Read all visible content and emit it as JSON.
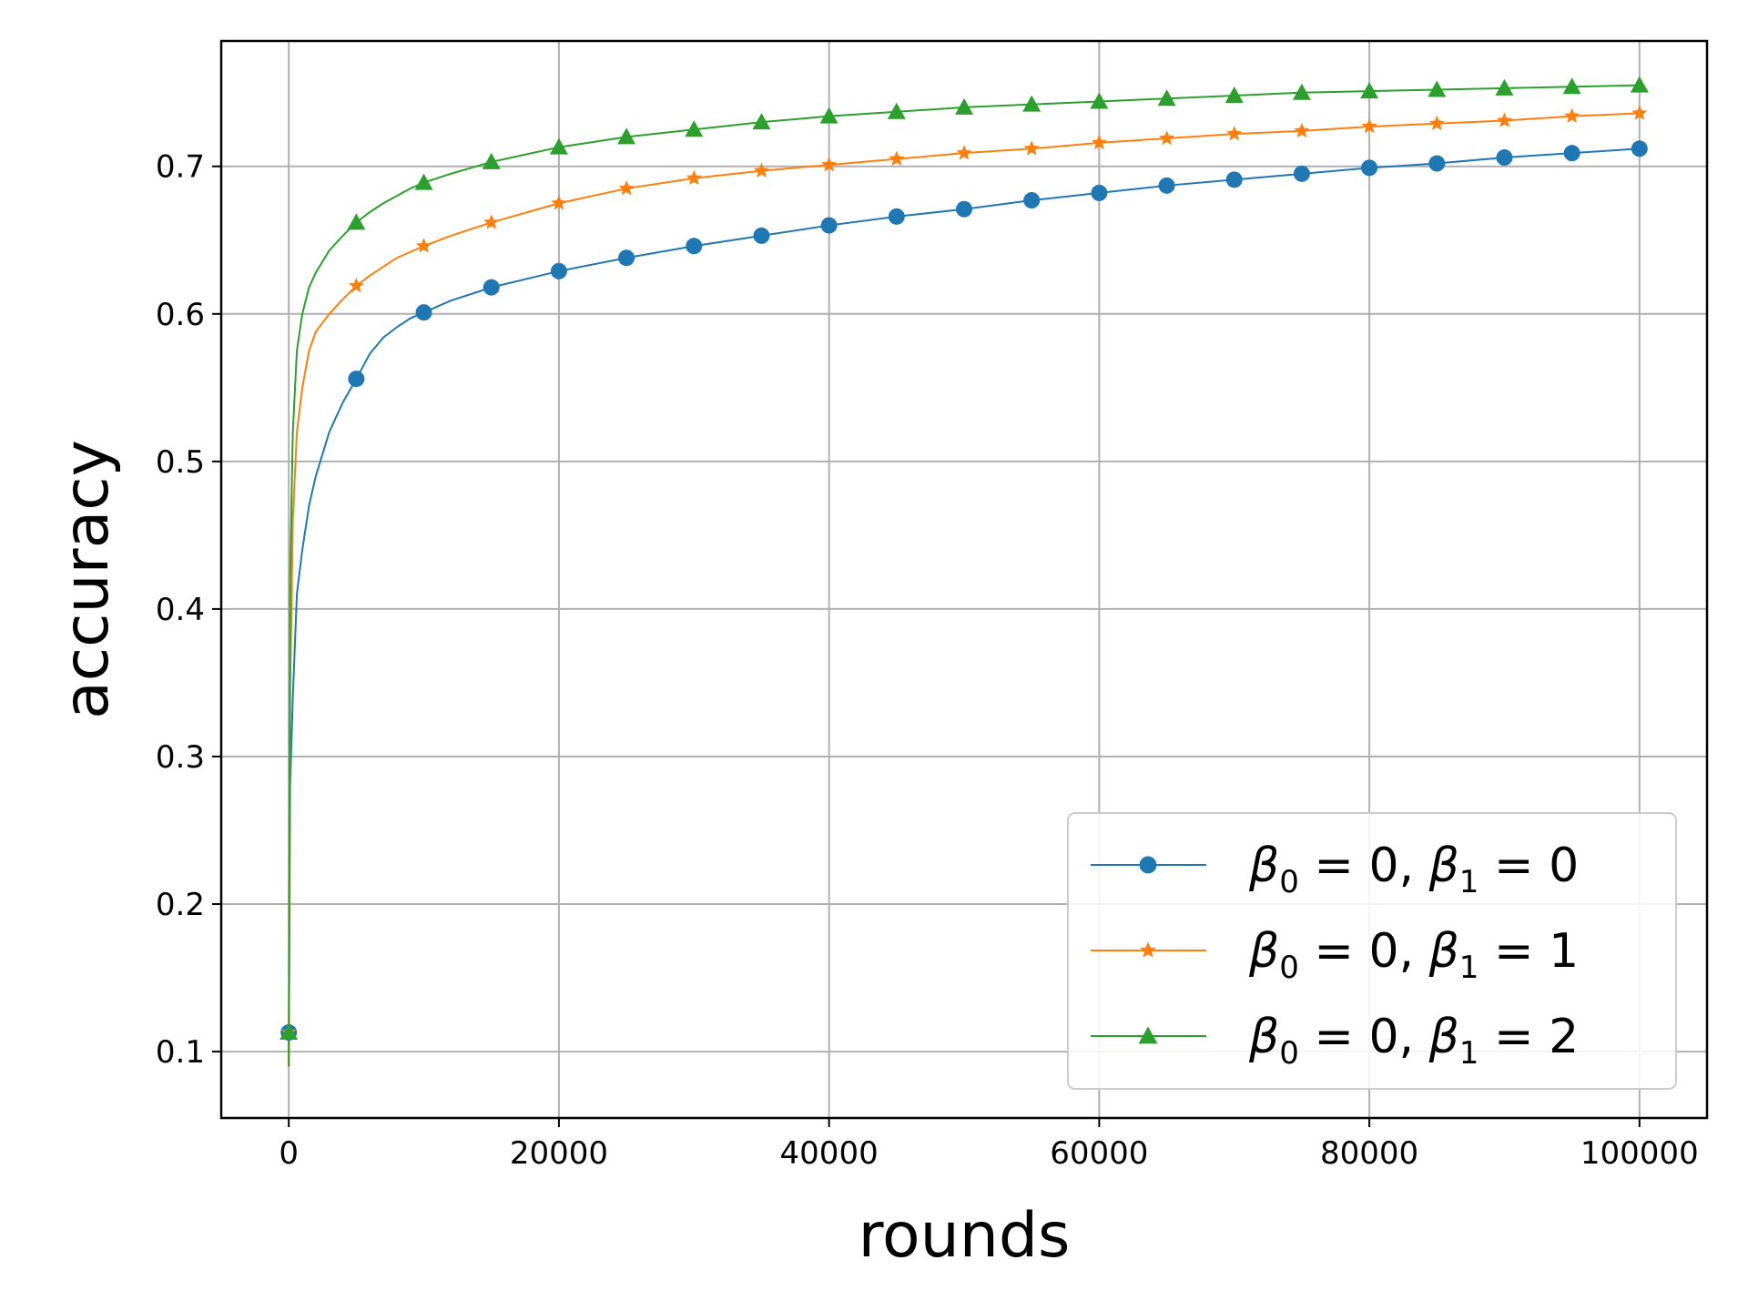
{
  "chart_data": {
    "type": "line",
    "title": "",
    "xlabel": "rounds",
    "ylabel": "accuracy",
    "xlim": [
      -5000,
      105000
    ],
    "ylim": [
      0.055,
      0.785
    ],
    "xticks": [
      0,
      20000,
      40000,
      60000,
      80000,
      100000
    ],
    "xtick_labels": [
      "0",
      "20000",
      "40000",
      "60000",
      "80000",
      "100000"
    ],
    "yticks": [
      0.1,
      0.2,
      0.3,
      0.4,
      0.5,
      0.6,
      0.7
    ],
    "ytick_labels": [
      "0.1",
      "0.2",
      "0.3",
      "0.4",
      "0.5",
      "0.6",
      "0.7"
    ],
    "grid": true,
    "legend_position": "lower-right",
    "series": [
      {
        "name": "β0 = 0, β1 = 0",
        "legend": {
          "beta0_sub": "0",
          "beta1_sub": "1",
          "beta0_value": "0",
          "beta1_value": "0"
        },
        "color": "#1f77b4",
        "marker": "circle",
        "line_x": [
          0,
          100,
          300,
          600,
          1000,
          1500,
          2000,
          3000,
          4000,
          5000,
          6000,
          7000,
          8000,
          9000,
          10000,
          12000,
          15000,
          20000,
          25000,
          30000,
          35000,
          40000,
          45000,
          50000,
          55000,
          60000,
          65000,
          70000,
          75000,
          80000,
          85000,
          90000,
          95000,
          100000
        ],
        "line_y": [
          0.09,
          0.28,
          0.34,
          0.41,
          0.44,
          0.47,
          0.49,
          0.52,
          0.54,
          0.556,
          0.573,
          0.584,
          0.591,
          0.597,
          0.601,
          0.609,
          0.618,
          0.629,
          0.638,
          0.646,
          0.653,
          0.66,
          0.666,
          0.671,
          0.677,
          0.682,
          0.687,
          0.691,
          0.695,
          0.699,
          0.702,
          0.706,
          0.709,
          0.712
        ],
        "marker_x": [
          0,
          5000,
          10000,
          15000,
          20000,
          25000,
          30000,
          35000,
          40000,
          45000,
          50000,
          55000,
          60000,
          65000,
          70000,
          75000,
          80000,
          85000,
          90000,
          95000,
          100000
        ],
        "marker_y": [
          0.113,
          0.556,
          0.601,
          0.618,
          0.629,
          0.638,
          0.646,
          0.653,
          0.66,
          0.666,
          0.671,
          0.677,
          0.682,
          0.687,
          0.691,
          0.695,
          0.699,
          0.702,
          0.706,
          0.709,
          0.712
        ]
      },
      {
        "name": "β0 = 0, β1 = 1",
        "legend": {
          "beta0_sub": "0",
          "beta1_sub": "1",
          "beta0_value": "0",
          "beta1_value": "1"
        },
        "color": "#ff7f0e",
        "marker": "star",
        "line_x": [
          0,
          100,
          300,
          600,
          1000,
          1500,
          2000,
          3000,
          4000,
          5000,
          6000,
          7000,
          8000,
          9000,
          10000,
          12000,
          15000,
          20000,
          25000,
          30000,
          35000,
          40000,
          45000,
          50000,
          55000,
          60000,
          65000,
          70000,
          75000,
          80000,
          85000,
          90000,
          95000,
          100000
        ],
        "line_y": [
          0.09,
          0.34,
          0.46,
          0.52,
          0.55,
          0.575,
          0.588,
          0.6,
          0.61,
          0.619,
          0.626,
          0.632,
          0.638,
          0.642,
          0.646,
          0.653,
          0.662,
          0.675,
          0.685,
          0.692,
          0.697,
          0.701,
          0.705,
          0.709,
          0.712,
          0.716,
          0.719,
          0.722,
          0.724,
          0.727,
          0.729,
          0.731,
          0.734,
          0.736
        ],
        "marker_x": [
          0,
          5000,
          10000,
          15000,
          20000,
          25000,
          30000,
          35000,
          40000,
          45000,
          50000,
          55000,
          60000,
          65000,
          70000,
          75000,
          80000,
          85000,
          90000,
          95000,
          100000
        ],
        "marker_y": [
          0.113,
          0.619,
          0.646,
          0.662,
          0.675,
          0.685,
          0.692,
          0.697,
          0.701,
          0.705,
          0.709,
          0.712,
          0.716,
          0.719,
          0.722,
          0.724,
          0.727,
          0.729,
          0.731,
          0.734,
          0.736
        ]
      },
      {
        "name": "β0 = 0, β1 = 2",
        "legend": {
          "beta0_sub": "0",
          "beta1_sub": "1",
          "beta0_value": "0",
          "beta1_value": "2"
        },
        "color": "#2ca02c",
        "marker": "triangle",
        "line_x": [
          0,
          100,
          300,
          600,
          1000,
          1500,
          2000,
          3000,
          4000,
          5000,
          6000,
          7000,
          8000,
          9000,
          10000,
          12000,
          15000,
          20000,
          25000,
          30000,
          35000,
          40000,
          45000,
          50000,
          55000,
          60000,
          65000,
          70000,
          75000,
          80000,
          85000,
          90000,
          95000,
          100000
        ],
        "line_y": [
          0.09,
          0.42,
          0.52,
          0.575,
          0.6,
          0.618,
          0.628,
          0.643,
          0.653,
          0.662,
          0.669,
          0.675,
          0.68,
          0.685,
          0.689,
          0.695,
          0.703,
          0.713,
          0.72,
          0.725,
          0.73,
          0.734,
          0.737,
          0.74,
          0.742,
          0.744,
          0.746,
          0.748,
          0.75,
          0.751,
          0.752,
          0.753,
          0.754,
          0.755
        ],
        "marker_x": [
          0,
          5000,
          10000,
          15000,
          20000,
          25000,
          30000,
          35000,
          40000,
          45000,
          50000,
          55000,
          60000,
          65000,
          70000,
          75000,
          80000,
          85000,
          90000,
          95000,
          100000
        ],
        "marker_y": [
          0.113,
          0.662,
          0.689,
          0.703,
          0.713,
          0.72,
          0.725,
          0.73,
          0.734,
          0.737,
          0.74,
          0.742,
          0.744,
          0.746,
          0.748,
          0.75,
          0.751,
          0.752,
          0.753,
          0.754,
          0.755
        ]
      }
    ]
  }
}
